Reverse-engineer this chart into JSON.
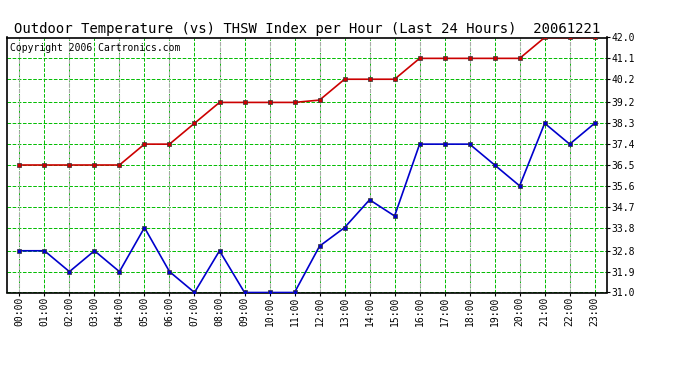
{
  "title": "Outdoor Temperature (vs) THSW Index per Hour (Last 24 Hours)  20061221",
  "copyright": "Copyright 2006 Cartronics.com",
  "hours": [
    "00:00",
    "01:00",
    "02:00",
    "03:00",
    "04:00",
    "05:00",
    "06:00",
    "07:00",
    "08:00",
    "09:00",
    "10:00",
    "11:00",
    "12:00",
    "13:00",
    "14:00",
    "15:00",
    "16:00",
    "17:00",
    "18:00",
    "19:00",
    "20:00",
    "21:00",
    "22:00",
    "23:00"
  ],
  "red_line": [
    36.5,
    36.5,
    36.5,
    36.5,
    36.5,
    37.4,
    37.4,
    38.3,
    39.2,
    39.2,
    39.2,
    39.2,
    39.3,
    40.2,
    40.2,
    40.2,
    41.1,
    41.1,
    41.1,
    41.1,
    41.1,
    42.0,
    42.0,
    42.0
  ],
  "blue_line": [
    32.8,
    32.8,
    31.9,
    32.8,
    31.9,
    33.8,
    31.9,
    31.0,
    32.8,
    31.0,
    31.0,
    31.0,
    33.0,
    33.8,
    35.0,
    34.3,
    37.4,
    37.4,
    37.4,
    36.5,
    35.6,
    38.3,
    37.4,
    38.3
  ],
  "ylim_min": 31.0,
  "ylim_max": 42.0,
  "yticks": [
    31.0,
    31.9,
    32.8,
    33.8,
    34.7,
    35.6,
    36.5,
    37.4,
    38.3,
    39.2,
    40.2,
    41.1,
    42.0
  ],
  "red_color": "#cc0000",
  "blue_color": "#0000cc",
  "grid_color": "#00bb00",
  "vgrid_color": "#aaaaaa",
  "bg_color": "#ffffff",
  "title_color": "#000000",
  "copyright_color": "#000000",
  "marker_size": 3,
  "line_width": 1.2,
  "title_fontsize": 10,
  "tick_fontsize": 7,
  "copyright_fontsize": 7
}
